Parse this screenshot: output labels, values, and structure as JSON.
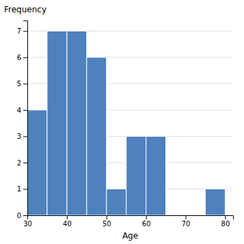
{
  "chart_data": {
    "type": "histogram",
    "xlabel": "Age",
    "ylabel": "Frequency",
    "bins": [
      30,
      35,
      40,
      45,
      50,
      55,
      60,
      65,
      75,
      80
    ],
    "values": [
      4,
      7,
      7,
      6,
      1,
      3,
      3,
      0,
      1
    ],
    "color": "#4F81BD",
    "xlim": [
      30,
      82
    ],
    "ylim": [
      0,
      7.4
    ],
    "xticks": [
      30,
      40,
      50,
      60,
      70,
      80
    ],
    "yticks": [
      0,
      1,
      2,
      3,
      4,
      5,
      6,
      7
    ],
    "grid": true
  }
}
